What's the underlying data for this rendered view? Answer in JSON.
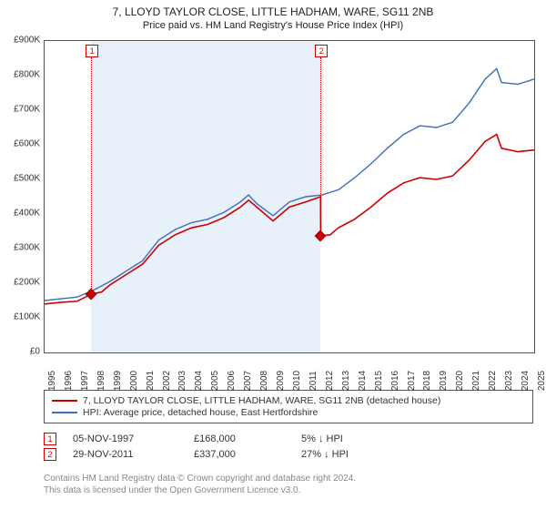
{
  "title": "7, LLOYD TAYLOR CLOSE, LITTLE HADHAM, WARE, SG11 2NB",
  "subtitle": "Price paid vs. HM Land Registry's House Price Index (HPI)",
  "chart": {
    "type": "line",
    "background_color": "#ffffff",
    "shaded_color": "#e8f0fa",
    "border_color": "#555555",
    "title_fontsize": 12,
    "label_fontsize": 10,
    "ylim": [
      0,
      900
    ],
    "ytick_step": 100,
    "y_prefix": "£",
    "y_suffix": "K",
    "xlim": [
      1995,
      2025
    ],
    "x_years": [
      1995,
      1996,
      1997,
      1998,
      1999,
      2000,
      2001,
      2002,
      2003,
      2004,
      2005,
      2006,
      2007,
      2008,
      2009,
      2010,
      2011,
      2012,
      2013,
      2014,
      2015,
      2016,
      2017,
      2018,
      2019,
      2020,
      2021,
      2022,
      2023,
      2024,
      2025
    ],
    "shaded_start": 1997.85,
    "shaded_end": 2011.91,
    "series": [
      {
        "name": "property",
        "label": "7, LLOYD TAYLOR CLOSE, LITTLE HADHAM, WARE, SG11 2NB (detached house)",
        "color": "#cc0000",
        "line_width": 1.6,
        "data": [
          [
            1995,
            140
          ],
          [
            1996,
            145
          ],
          [
            1997,
            148
          ],
          [
            1997.5,
            160
          ],
          [
            1997.85,
            168
          ],
          [
            1998.5,
            175
          ],
          [
            1999,
            195
          ],
          [
            2000,
            225
          ],
          [
            2001,
            255
          ],
          [
            2002,
            310
          ],
          [
            2003,
            340
          ],
          [
            2003.5,
            350
          ],
          [
            2004,
            360
          ],
          [
            2005,
            370
          ],
          [
            2006,
            390
          ],
          [
            2007,
            420
          ],
          [
            2007.5,
            440
          ],
          [
            2008,
            420
          ],
          [
            2009,
            380
          ],
          [
            2010,
            420
          ],
          [
            2011,
            435
          ],
          [
            2011.91,
            450
          ],
          [
            2011.92,
            337
          ],
          [
            2012.5,
            340
          ],
          [
            2013,
            360
          ],
          [
            2014,
            385
          ],
          [
            2015,
            420
          ],
          [
            2016,
            460
          ],
          [
            2017,
            490
          ],
          [
            2018,
            505
          ],
          [
            2019,
            500
          ],
          [
            2020,
            510
          ],
          [
            2021,
            555
          ],
          [
            2022,
            610
          ],
          [
            2022.7,
            630
          ],
          [
            2023,
            590
          ],
          [
            2024,
            580
          ],
          [
            2025,
            585
          ]
        ]
      },
      {
        "name": "hpi",
        "label": "HPI: Average price, detached house, East Hertfordshire",
        "color": "#3b6fb6",
        "line_width": 1.4,
        "data": [
          [
            1995,
            150
          ],
          [
            1996,
            155
          ],
          [
            1997,
            160
          ],
          [
            1998,
            180
          ],
          [
            1999,
            205
          ],
          [
            2000,
            235
          ],
          [
            2001,
            265
          ],
          [
            2002,
            325
          ],
          [
            2003,
            355
          ],
          [
            2004,
            375
          ],
          [
            2005,
            385
          ],
          [
            2006,
            405
          ],
          [
            2007,
            435
          ],
          [
            2007.5,
            455
          ],
          [
            2008,
            430
          ],
          [
            2009,
            395
          ],
          [
            2010,
            435
          ],
          [
            2011,
            450
          ],
          [
            2012,
            455
          ],
          [
            2013,
            470
          ],
          [
            2014,
            505
          ],
          [
            2015,
            545
          ],
          [
            2016,
            590
          ],
          [
            2017,
            630
          ],
          [
            2018,
            655
          ],
          [
            2019,
            650
          ],
          [
            2020,
            665
          ],
          [
            2021,
            720
          ],
          [
            2022,
            790
          ],
          [
            2022.7,
            820
          ],
          [
            2023,
            780
          ],
          [
            2024,
            775
          ],
          [
            2025,
            790
          ]
        ]
      }
    ],
    "markers": [
      {
        "id": "1",
        "year": 1997.85,
        "value": 168
      },
      {
        "id": "2",
        "year": 2011.91,
        "value": 337
      }
    ]
  },
  "legend": {
    "items": [
      {
        "series": "property"
      },
      {
        "series": "hpi"
      }
    ]
  },
  "sales": [
    {
      "marker": "1",
      "date": "05-NOV-1997",
      "price": "£168,000",
      "delta": "5% ↓ HPI"
    },
    {
      "marker": "2",
      "date": "29-NOV-2011",
      "price": "£337,000",
      "delta": "27% ↓ HPI"
    }
  ],
  "footer_line1": "Contains HM Land Registry data © Crown copyright and database right 2024.",
  "footer_line2": "This data is licensed under the Open Government Licence v3.0."
}
